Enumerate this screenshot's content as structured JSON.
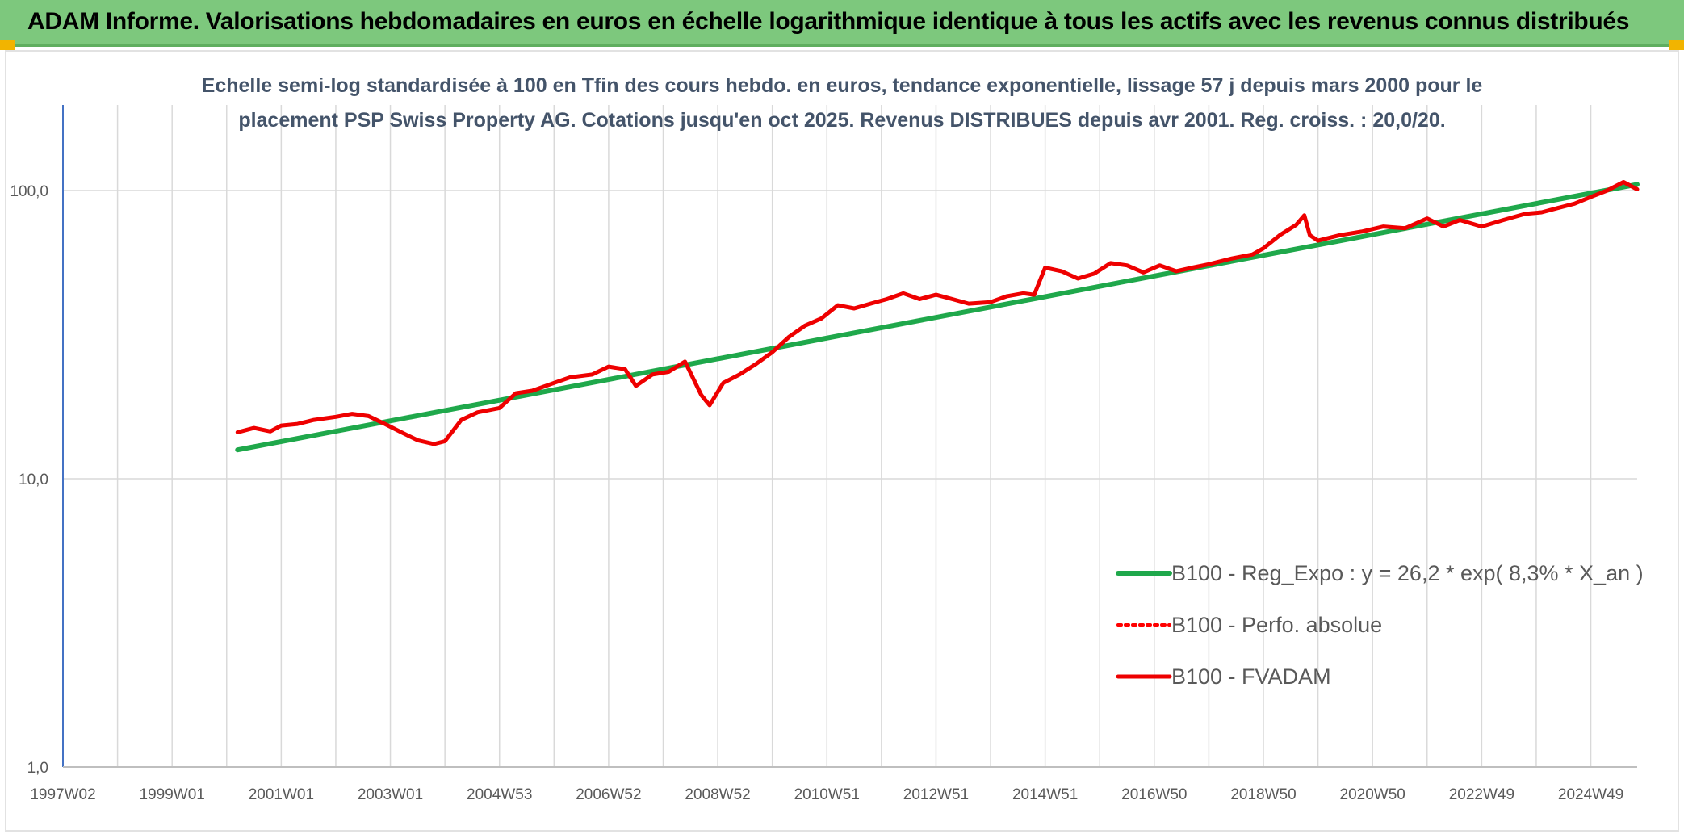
{
  "header": {
    "title": "ADAM Informe. Valorisations hebdomadaires en euros en échelle logarithmique identique à tous les actifs avec les revenus connus distribués"
  },
  "colors": {
    "header_bg": "#7dc87d",
    "trend": "#1fa84b",
    "perf": "#ff0000",
    "fvadam": "#ee0000",
    "grid": "#d9d9d9",
    "axis": "#4472c4"
  },
  "chart_data": {
    "type": "line",
    "yscale": "log",
    "title_lines": [
      "Echelle semi-log standardisée à 100 en Tfin des cours hebdo. en euros, tendance exponentielle, lissage 57 j depuis mars 2000 pour le",
      "placement PSP Swiss Property AG. Cotations jusqu'en oct 2025. Revenus DISTRIBUES depuis avr 2001. Reg. croiss. : 20,0/20."
    ],
    "x_tick_labels": [
      "1997W02",
      "1999W01",
      "2001W01",
      "2003W01",
      "2004W53",
      "2006W52",
      "2008W52",
      "2010W51",
      "2012W51",
      "2014W51",
      "2016W50",
      "2018W50",
      "2020W50",
      "2022W49",
      "2024W49"
    ],
    "x_tick_years": [
      1997.0,
      1999.0,
      2001.0,
      2003.0,
      2005.0,
      2007.0,
      2009.0,
      2011.0,
      2013.0,
      2015.0,
      2017.0,
      2019.0,
      2021.0,
      2023.0,
      2025.0
    ],
    "x_range": [
      1997.0,
      2025.85
    ],
    "y_tick_labels": [
      "1,0",
      "10,0",
      "100,0"
    ],
    "y_tick_values": [
      1,
      10,
      100
    ],
    "ylim": [
      1,
      200
    ],
    "legend": [
      "B100 - Reg_Expo : y = 26,2 * exp( 8,3% *  X_an )",
      "B100 - Perfo. absolue",
      "B100 - FVADAM"
    ],
    "series": [
      {
        "name": "B100 - Reg_Expo : y = 26,2 * exp( 8,3% *  X_an )",
        "style": "trend",
        "x": [
          2000.2,
          2025.85
        ],
        "y": [
          12.6,
          105.0
        ]
      },
      {
        "name": "B100 - FVADAM",
        "style": "solid",
        "x": [
          2000.2,
          2000.5,
          2000.8,
          2001.0,
          2001.3,
          2001.6,
          2002.0,
          2002.3,
          2002.6,
          2002.9,
          2003.2,
          2003.5,
          2003.8,
          2004.0,
          2004.3,
          2004.6,
          2005.0,
          2005.3,
          2005.6,
          2006.0,
          2006.3,
          2006.7,
          2007.0,
          2007.3,
          2007.5,
          2007.8,
          2008.1,
          2008.4,
          2008.7,
          2008.85,
          2009.1,
          2009.4,
          2009.7,
          2010.0,
          2010.3,
          2010.6,
          2010.9,
          2011.2,
          2011.5,
          2011.8,
          2012.1,
          2012.4,
          2012.7,
          2013.0,
          2013.3,
          2013.6,
          2014.0,
          2014.3,
          2014.6,
          2014.8,
          2015.0,
          2015.3,
          2015.6,
          2015.9,
          2016.2,
          2016.5,
          2016.8,
          2017.1,
          2017.4,
          2017.7,
          2018.0,
          2018.4,
          2018.8,
          2019.0,
          2019.3,
          2019.6,
          2019.75,
          2019.85,
          2020.0,
          2020.4,
          2020.8,
          2021.2,
          2021.6,
          2022.0,
          2022.3,
          2022.6,
          2023.0,
          2023.4,
          2023.8,
          2024.1,
          2024.4,
          2024.7,
          2025.0,
          2025.3,
          2025.6,
          2025.85
        ],
        "y": [
          14.5,
          15.0,
          14.6,
          15.3,
          15.5,
          16.0,
          16.4,
          16.8,
          16.5,
          15.5,
          14.5,
          13.6,
          13.2,
          13.5,
          16.0,
          17.0,
          17.6,
          19.8,
          20.2,
          21.5,
          22.5,
          23.0,
          24.5,
          24.0,
          21.0,
          23.0,
          23.5,
          25.5,
          19.5,
          18.0,
          21.5,
          23.0,
          25.0,
          27.5,
          31.0,
          34.0,
          36.0,
          40.0,
          39.0,
          40.5,
          42.0,
          44.0,
          42.0,
          43.5,
          42.0,
          40.5,
          41.0,
          43.0,
          44.0,
          43.5,
          54.0,
          52.5,
          49.5,
          51.5,
          56.0,
          55.0,
          52.0,
          55.0,
          52.5,
          54.0,
          55.5,
          58.0,
          60.0,
          63.0,
          70.0,
          76.0,
          82.0,
          70.0,
          67.0,
          70.0,
          72.0,
          75.0,
          74.0,
          80.0,
          75.0,
          79.0,
          75.0,
          79.0,
          83.0,
          84.0,
          87.0,
          90.0,
          95.0,
          100.0,
          107.0,
          101.0
        ]
      }
    ]
  }
}
